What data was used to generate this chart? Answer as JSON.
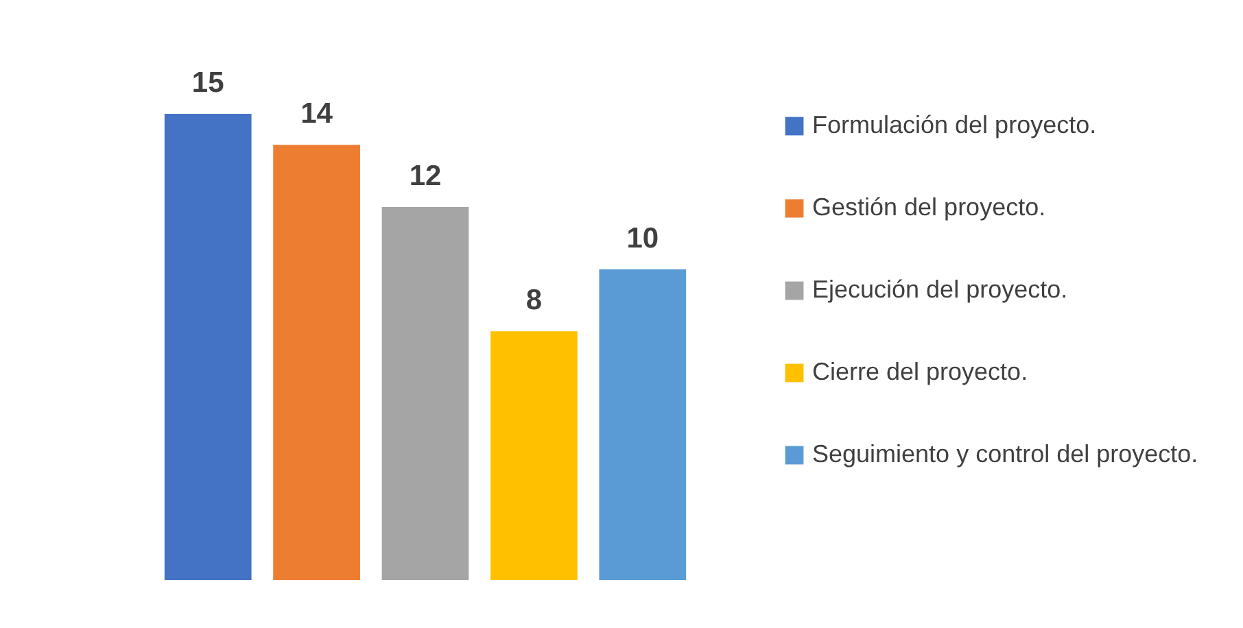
{
  "chart_data": {
    "type": "bar",
    "categories": [
      null
    ],
    "data_labels": true,
    "legend": "right",
    "series": [
      {
        "name": "Formulación del proyecto.",
        "color": "#4472c4",
        "values": [
          15
        ]
      },
      {
        "name": "Gestión del proyecto.",
        "color": "#ed7d31",
        "values": [
          14
        ]
      },
      {
        "name": "Ejecución del proyecto.",
        "color": "#a5a5a5",
        "values": [
          12
        ]
      },
      {
        "name": "Cierre del proyecto.",
        "color": "#ffc000",
        "values": [
          8
        ]
      },
      {
        "name": "Seguimiento y control del proyecto.",
        "color": "#5b9bd5",
        "values": [
          10
        ]
      }
    ]
  }
}
